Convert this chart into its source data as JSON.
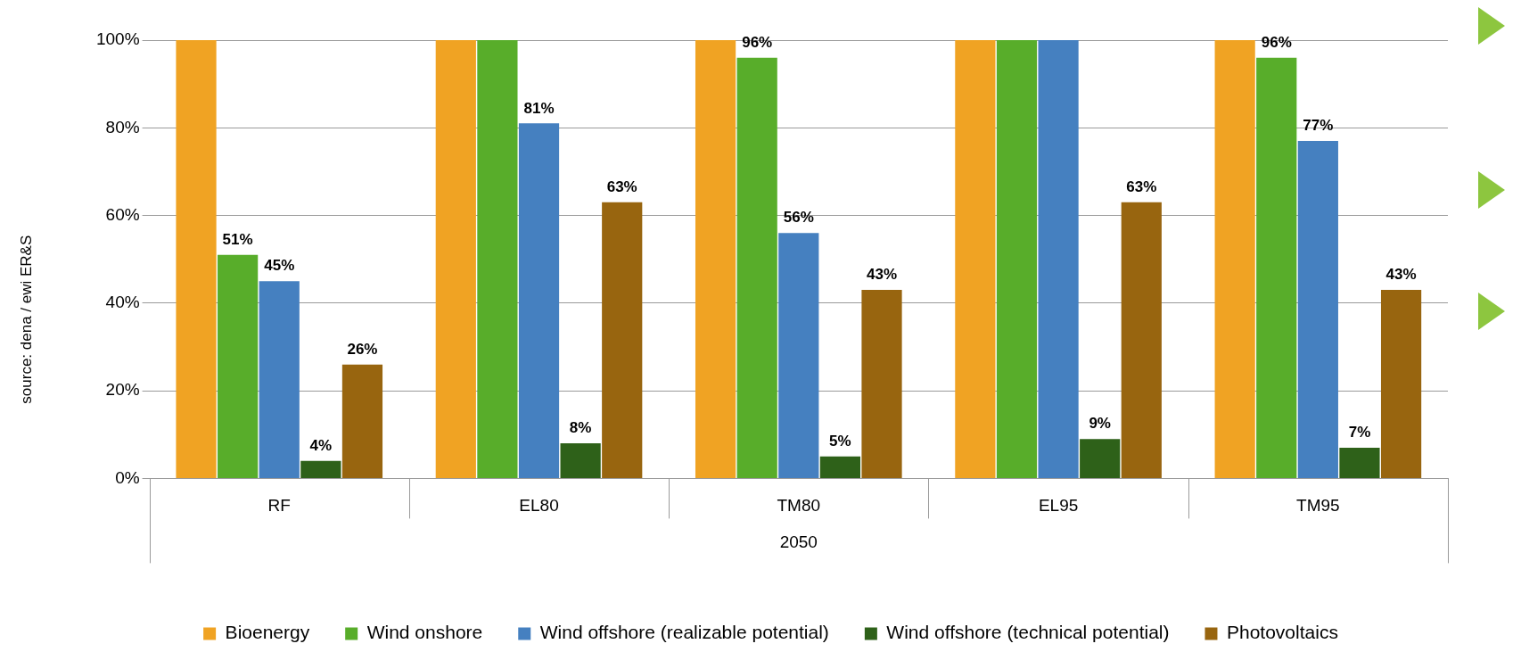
{
  "chart_data": {
    "type": "bar",
    "categories": [
      "RF",
      "EL80",
      "TM80",
      "EL95",
      "TM95"
    ],
    "xlabel": "2050",
    "series": [
      {
        "name": "Bioenergy",
        "color": "#f0a323",
        "values": [
          100,
          100,
          100,
          100,
          100
        ],
        "value_labels": [
          null,
          null,
          null,
          null,
          null
        ]
      },
      {
        "name": "Wind onshore",
        "color": "#58ad2a",
        "values": [
          51,
          100,
          96,
          100,
          96
        ],
        "value_labels": [
          "51%",
          null,
          "96%",
          null,
          "96%"
        ]
      },
      {
        "name": "Wind offshore (realizable potential)",
        "color": "#4580c0",
        "values": [
          45,
          81,
          56,
          100,
          77
        ],
        "value_labels": [
          "45%",
          "81%",
          "56%",
          null,
          "77%"
        ]
      },
      {
        "name": "Wind offshore (technical potential)",
        "color": "#2e6119",
        "values": [
          4,
          8,
          5,
          9,
          7
        ],
        "value_labels": [
          "4%",
          "8%",
          "5%",
          "9%",
          "7%"
        ]
      },
      {
        "name": "Photovoltaics",
        "color": "#98650f",
        "values": [
          26,
          63,
          43,
          63,
          43
        ],
        "value_labels": [
          "26%",
          "63%",
          "43%",
          "63%",
          "43%"
        ]
      }
    ],
    "ylim": [
      0,
      100
    ],
    "yticks": [
      {
        "value": 0,
        "label": "0%"
      },
      {
        "value": 20,
        "label": "20%"
      },
      {
        "value": 40,
        "label": "40%"
      },
      {
        "value": 60,
        "label": "60%"
      },
      {
        "value": 80,
        "label": "80%"
      },
      {
        "value": 100,
        "label": "100%"
      }
    ],
    "grid": "y",
    "legend": "bottom",
    "annotations": [
      "source: dena / ewi ER&S"
    ]
  }
}
